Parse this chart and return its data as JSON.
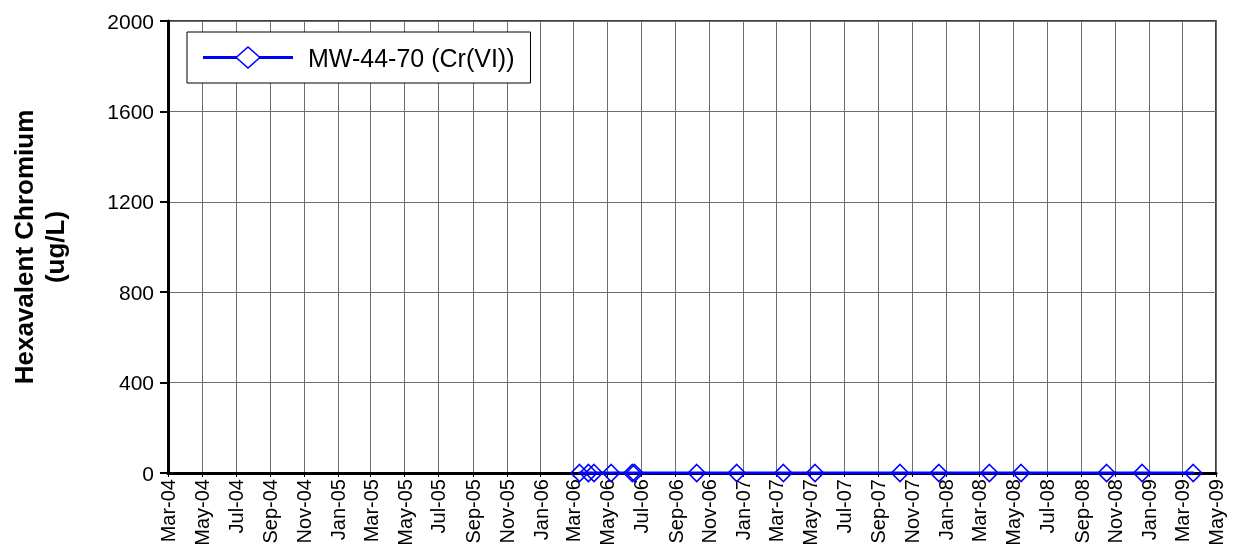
{
  "chart_data": {
    "type": "line",
    "ylabel": "Hexavalent Chromium (ug/L)",
    "x": [
      "2006-03-12",
      "2006-03-28",
      "2006-04-07",
      "2006-05-08",
      "2006-06-15",
      "2006-06-19",
      "2006-10-09",
      "2006-12-20",
      "2007-03-14",
      "2007-05-10",
      "2007-10-10",
      "2007-12-19",
      "2008-03-19",
      "2008-05-15",
      "2008-10-16",
      "2008-12-19",
      "2009-03-21"
    ],
    "series": [
      {
        "name": "MW-44-70 (Cr(VI))",
        "color": "#0000ff",
        "values": [
          0,
          0,
          0,
          0,
          0,
          0,
          0,
          0,
          0,
          0,
          0,
          0,
          0,
          0,
          0,
          0,
          0
        ]
      }
    ],
    "xlim": [
      "2004-03",
      "2009-05"
    ],
    "xticks": [
      {
        "value": "2004-03",
        "label": "Mar-04"
      },
      {
        "value": "2004-05",
        "label": "May-04"
      },
      {
        "value": "2004-07",
        "label": "Jul-04"
      },
      {
        "value": "2004-09",
        "label": "Sep-04"
      },
      {
        "value": "2004-11",
        "label": "Nov-04"
      },
      {
        "value": "2005-01",
        "label": "Jan-05"
      },
      {
        "value": "2005-03",
        "label": "Mar-05"
      },
      {
        "value": "2005-05",
        "label": "May-05"
      },
      {
        "value": "2005-07",
        "label": "Jul-05"
      },
      {
        "value": "2005-09",
        "label": "Sep-05"
      },
      {
        "value": "2005-11",
        "label": "Nov-05"
      },
      {
        "value": "2006-01",
        "label": "Jan-06"
      },
      {
        "value": "2006-03",
        "label": "Mar-06"
      },
      {
        "value": "2006-05",
        "label": "May-06"
      },
      {
        "value": "2006-07",
        "label": "Jul-06"
      },
      {
        "value": "2006-09",
        "label": "Sep-06"
      },
      {
        "value": "2006-11",
        "label": "Nov-06"
      },
      {
        "value": "2007-01",
        "label": "Jan-07"
      },
      {
        "value": "2007-03",
        "label": "Mar-07"
      },
      {
        "value": "2007-05",
        "label": "May-07"
      },
      {
        "value": "2007-07",
        "label": "Jul-07"
      },
      {
        "value": "2007-09",
        "label": "Sep-07"
      },
      {
        "value": "2007-11",
        "label": "Nov-07"
      },
      {
        "value": "2008-01",
        "label": "Jan-08"
      },
      {
        "value": "2008-03",
        "label": "Mar-08"
      },
      {
        "value": "2008-05",
        "label": "May-08"
      },
      {
        "value": "2008-07",
        "label": "Jul-08"
      },
      {
        "value": "2008-09",
        "label": "Sep-08"
      },
      {
        "value": "2008-11",
        "label": "Nov-08"
      },
      {
        "value": "2009-01",
        "label": "Jan-09"
      },
      {
        "value": "2009-03",
        "label": "Mar-09"
      },
      {
        "value": "2009-05",
        "label": "May-09"
      }
    ],
    "ylim": [
      0,
      2000
    ],
    "yticks": [
      0,
      400,
      800,
      1200,
      1600,
      2000
    ],
    "grid": true,
    "legend": "top left",
    "marker": "diamond",
    "line_style": "solid"
  }
}
